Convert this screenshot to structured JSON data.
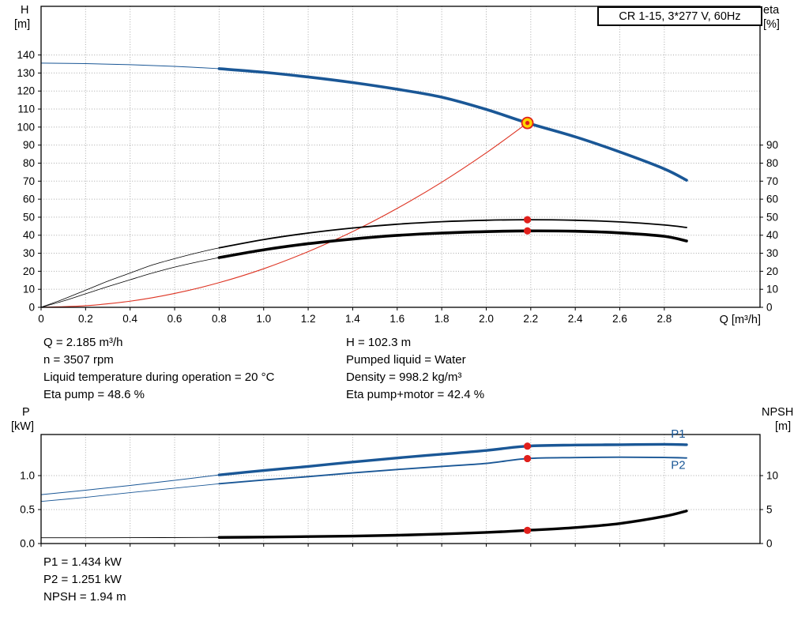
{
  "title_box": {
    "label": "CR 1-15, 3*277 V, 60Hz"
  },
  "colors": {
    "blue": "#1a5796",
    "red": "#e0201c",
    "yellow": "#ffd500",
    "black": "#000000",
    "grid": "#a9a9a9"
  },
  "axis_titles": {
    "h": "H",
    "m": "[m]",
    "eta": "eta",
    "pct": "[%]",
    "q": "Q [m³/h]",
    "p": "P",
    "kw": "[kW]",
    "npsh": "NPSH",
    "npsh_m": "[m]"
  },
  "annotations": {
    "top_left": [
      "Q = 2.185 m³/h",
      "n = 3507 rpm",
      "Liquid temperature during operation = 20 °C",
      "Eta pump = 48.6 %"
    ],
    "top_right": [
      "H = 102.3 m",
      "Pumped liquid = Water",
      "Density = 998.2 kg/m³",
      "Eta pump+motor = 42.4 %"
    ],
    "bottom": [
      "P1 = 1.434 kW",
      "P2 = 1.251 kW",
      "NPSH = 1.94 m"
    ]
  },
  "chart_data": [
    {
      "id": "head",
      "type": "line",
      "x": {
        "min": 0,
        "max": 3.23,
        "tick_values": [
          0,
          0.2,
          0.4,
          0.6,
          0.8,
          1.0,
          1.2,
          1.4,
          1.6,
          1.8,
          2.0,
          2.2,
          2.4,
          2.6,
          2.8
        ],
        "tick_labels": [
          "0",
          "0.2",
          "0.4",
          "0.6",
          "0.8",
          "1.0",
          "1.2",
          "1.4",
          "1.6",
          "1.8",
          "2.0",
          "2.2",
          "2.4",
          "2.6",
          "2.8"
        ],
        "label": "Q [m³/h]"
      },
      "y_left": {
        "min": 0,
        "max": 167,
        "tick_values": [
          0,
          10,
          20,
          30,
          40,
          50,
          60,
          70,
          80,
          90,
          100,
          110,
          120,
          130,
          140
        ],
        "tick_labels": [
          "0",
          "10",
          "20",
          "30",
          "40",
          "50",
          "60",
          "70",
          "80",
          "90",
          "100",
          "110",
          "120",
          "130",
          "140"
        ],
        "label": "H [m]"
      },
      "y_right": {
        "min": 0,
        "max": 167,
        "tick_values": [
          0,
          10,
          20,
          30,
          40,
          50,
          60,
          70,
          80,
          90
        ],
        "tick_labels": [
          "0",
          "10",
          "20",
          "30",
          "40",
          "50",
          "60",
          "70",
          "80",
          "90"
        ],
        "label": "eta [%]"
      },
      "series": [
        {
          "name": "pump-head-curve",
          "axis": "left",
          "color": "#1a5796",
          "width": 3.6,
          "thin_until": 0.8,
          "thin_width": 1,
          "points": [
            [
              0,
              135.5
            ],
            [
              0.2,
              135.2
            ],
            [
              0.4,
              134.6
            ],
            [
              0.6,
              133.7
            ],
            [
              0.8,
              132.4
            ],
            [
              1.0,
              130.4
            ],
            [
              1.2,
              127.8
            ],
            [
              1.4,
              124.7
            ],
            [
              1.6,
              121.0
            ],
            [
              1.8,
              116.6
            ],
            [
              2.0,
              109.8
            ],
            [
              2.185,
              102.3
            ],
            [
              2.4,
              94.6
            ],
            [
              2.6,
              86.2
            ],
            [
              2.8,
              76.8
            ],
            [
              2.9,
              70.5
            ]
          ]
        },
        {
          "name": "system-curve",
          "axis": "left",
          "color": "#dd3322",
          "width": 1.1,
          "points": [
            [
              0,
              0
            ],
            [
              0.2,
              0.9
            ],
            [
              0.4,
              3.4
            ],
            [
              0.6,
              7.7
            ],
            [
              0.8,
              13.7
            ],
            [
              1.0,
              21.4
            ],
            [
              1.2,
              30.9
            ],
            [
              1.4,
              42.0
            ],
            [
              1.6,
              54.9
            ],
            [
              1.8,
              69.4
            ],
            [
              2.0,
              85.7
            ],
            [
              2.185,
              102.3
            ]
          ]
        },
        {
          "name": "eta-pump-curve",
          "axis": "right",
          "color": "#000000",
          "width": 1.8,
          "thin_until": 0.8,
          "thin_width": 0.8,
          "points": [
            [
              0,
              0
            ],
            [
              0.1,
              4.5
            ],
            [
              0.2,
              9.5
            ],
            [
              0.3,
              14.5
            ],
            [
              0.4,
              19
            ],
            [
              0.5,
              23.5
            ],
            [
              0.6,
              27
            ],
            [
              0.7,
              30.2
            ],
            [
              0.8,
              33
            ],
            [
              1.0,
              37.6
            ],
            [
              1.2,
              41.2
            ],
            [
              1.4,
              44
            ],
            [
              1.6,
              46.1
            ],
            [
              1.8,
              47.5
            ],
            [
              2.0,
              48.3
            ],
            [
              2.185,
              48.6
            ],
            [
              2.4,
              48.3
            ],
            [
              2.6,
              47.4
            ],
            [
              2.8,
              45.7
            ],
            [
              2.9,
              44.3
            ]
          ]
        },
        {
          "name": "eta-pump-motor-curve",
          "axis": "right",
          "color": "#000000",
          "width": 3.6,
          "thin_until": 0.8,
          "thin_width": 0.8,
          "points": [
            [
              0,
              0
            ],
            [
              0.1,
              3.5
            ],
            [
              0.2,
              7.5
            ],
            [
              0.3,
              11.5
            ],
            [
              0.4,
              15.3
            ],
            [
              0.5,
              19
            ],
            [
              0.6,
              22.3
            ],
            [
              0.7,
              25.1
            ],
            [
              0.8,
              27.6
            ],
            [
              1.0,
              31.9
            ],
            [
              1.2,
              35.3
            ],
            [
              1.4,
              37.9
            ],
            [
              1.6,
              39.9
            ],
            [
              1.8,
              41.2
            ],
            [
              2.0,
              42.0
            ],
            [
              2.185,
              42.4
            ],
            [
              2.4,
              42.2
            ],
            [
              2.6,
              41.3
            ],
            [
              2.8,
              39.4
            ],
            [
              2.9,
              36.8
            ]
          ]
        }
      ],
      "markers": [
        {
          "name": "duty-point",
          "axis": "left",
          "q": 2.185,
          "value": 102.3,
          "style": "duty"
        },
        {
          "name": "eta-pump-point",
          "axis": "right",
          "q": 2.185,
          "value": 48.6,
          "style": "dot"
        },
        {
          "name": "eta-pump-motor-point",
          "axis": "right",
          "q": 2.185,
          "value": 42.4,
          "style": "dot"
        }
      ],
      "curve_labels": []
    },
    {
      "id": "power",
      "type": "line",
      "x": {
        "min": 0,
        "max": 3.23,
        "tick_values": [
          0,
          0.2,
          0.4,
          0.6,
          0.8,
          1.0,
          1.2,
          1.4,
          1.6,
          1.8,
          2.0,
          2.2,
          2.4,
          2.6,
          2.8
        ],
        "tick_labels": [],
        "label": ""
      },
      "y_left": {
        "min": 0,
        "max": 1.605,
        "tick_values": [
          0,
          0.5,
          1.0
        ],
        "tick_labels": [
          "0.0",
          "0.5",
          "1.0"
        ],
        "label": "P [kW]"
      },
      "y_right": {
        "min": 0,
        "max": 16.05,
        "tick_values": [
          0,
          5,
          10
        ],
        "tick_labels": [
          "0",
          "5",
          "10"
        ],
        "label": "NPSH [m]"
      },
      "series": [
        {
          "name": "p1-curve",
          "axis": "left",
          "color": "#1a5796",
          "width": 3.4,
          "thin_until": 0.8,
          "thin_width": 1,
          "points": [
            [
              0,
              0.72
            ],
            [
              0.2,
              0.785
            ],
            [
              0.4,
              0.855
            ],
            [
              0.6,
              0.93
            ],
            [
              0.8,
              1.01
            ],
            [
              1.0,
              1.075
            ],
            [
              1.2,
              1.135
            ],
            [
              1.4,
              1.2
            ],
            [
              1.6,
              1.26
            ],
            [
              1.8,
              1.315
            ],
            [
              2.0,
              1.37
            ],
            [
              2.185,
              1.434
            ],
            [
              2.4,
              1.45
            ],
            [
              2.6,
              1.455
            ],
            [
              2.8,
              1.46
            ],
            [
              2.9,
              1.455
            ]
          ]
        },
        {
          "name": "p2-curve",
          "axis": "left",
          "color": "#1a5796",
          "width": 1.9,
          "thin_until": 0.8,
          "thin_width": 0.9,
          "points": [
            [
              0,
              0.62
            ],
            [
              0.2,
              0.68
            ],
            [
              0.4,
              0.75
            ],
            [
              0.6,
              0.815
            ],
            [
              0.8,
              0.88
            ],
            [
              1.0,
              0.935
            ],
            [
              1.2,
              0.985
            ],
            [
              1.4,
              1.04
            ],
            [
              1.6,
              1.09
            ],
            [
              1.8,
              1.135
            ],
            [
              2.0,
              1.18
            ],
            [
              2.185,
              1.251
            ],
            [
              2.4,
              1.266
            ],
            [
              2.6,
              1.271
            ],
            [
              2.8,
              1.267
            ],
            [
              2.9,
              1.26
            ]
          ]
        },
        {
          "name": "npsh-curve",
          "axis": "right",
          "color": "#000000",
          "width": 3.4,
          "thin_until": 0.8,
          "thin_width": 0.9,
          "points": [
            [
              0,
              0.85
            ],
            [
              0.4,
              0.86
            ],
            [
              0.8,
              0.9
            ],
            [
              1.0,
              0.95
            ],
            [
              1.2,
              1.02
            ],
            [
              1.4,
              1.1
            ],
            [
              1.6,
              1.22
            ],
            [
              1.8,
              1.4
            ],
            [
              2.0,
              1.63
            ],
            [
              2.185,
              1.94
            ],
            [
              2.4,
              2.35
            ],
            [
              2.6,
              2.95
            ],
            [
              2.8,
              4.0
            ],
            [
              2.9,
              4.8
            ]
          ]
        }
      ],
      "markers": [
        {
          "name": "p1-point",
          "axis": "left",
          "q": 2.185,
          "value": 1.434,
          "style": "dot"
        },
        {
          "name": "p2-point",
          "axis": "left",
          "q": 2.185,
          "value": 1.251,
          "style": "dot"
        },
        {
          "name": "npsh-point",
          "axis": "right",
          "q": 2.185,
          "value": 1.94,
          "style": "dot"
        }
      ],
      "curve_labels": [
        {
          "text": "P1",
          "q": 2.83,
          "value": 1.56,
          "axis": "left",
          "color": "#1a5796"
        },
        {
          "text": "P2",
          "q": 2.83,
          "value": 1.1,
          "axis": "left",
          "color": "#1a5796"
        }
      ]
    }
  ]
}
